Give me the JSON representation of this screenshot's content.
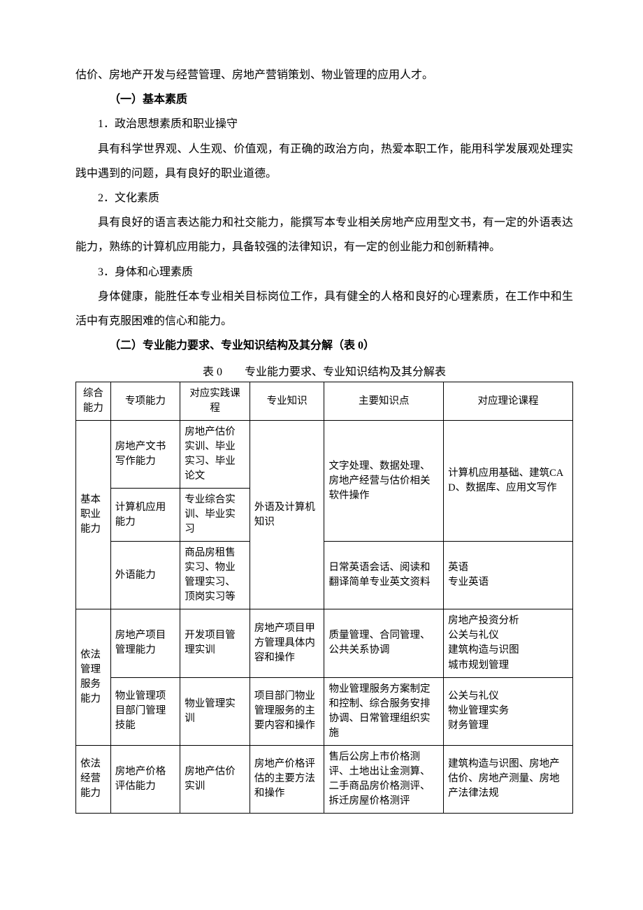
{
  "paragraphs": {
    "p1": "估价、房地产开发与经营管理、房地产营销策划、物业管理的应用人才。",
    "h1": "（一）基本素质",
    "p2": "1．政治思想素质和职业操守",
    "p3": "具有科学世界观、人生观、价值观，有正确的政治方向，热爱本职工作，能用科学发展观处理实践中遇到的问题，具有良好的职业道德。",
    "p4": "2．文化素质",
    "p5": "具有良好的语言表达能力和社交能力，能撰写本专业相关房地产应用型文书，有一定的外语表达能力，熟练的计算机应用能力，具备较强的法律知识，有一定的创业能力和创新精神。",
    "p6": "3．身体和心理素质",
    "p7": "身体健康，能胜任本专业相关目标岗位工作，具有健全的人格和良好的心理素质，在工作中和生活中有克服困难的信心和能力。",
    "h2": "（二）专业能力要求、专业知识结构及其分解（表 0）",
    "caption": "表 0　　专业能力要求、专业知识结构及其分解表"
  },
  "table": {
    "colWidths": [
      "7%",
      "14%",
      "14%",
      "15%",
      "24%",
      "26%"
    ],
    "headers": {
      "c1": "综合能力",
      "c2": "专项能力",
      "c3": "对应实践课程",
      "c4": "专业知识",
      "c5": "主要知识点",
      "c6": "对应理论课程"
    },
    "g1": {
      "label": "基本职业能力",
      "r1": {
        "c2": "房地产文书写作能力",
        "c3": "房地产估价实训、毕业实习、毕业论文"
      },
      "r2": {
        "c2": "计算机应用能力",
        "c3": "专业综合实训、毕业实习"
      },
      "r3": {
        "c2": "外语能力",
        "c3": "商品房租售实习、物业管理实习、顶岗实习等"
      },
      "c4": "外语及计算机知识",
      "kp1": "文字处理、数据处理、房地产经营与估价相关软件操作",
      "kc1": "计算机应用基础、建筑CAD、数据库、应用文写作",
      "kp2": "日常英语会话、阅读和翻译简单专业英文资料",
      "kc2": "英语\n专业英语"
    },
    "g2": {
      "label": "依法管理服务能力",
      "r1": {
        "c2": "房地产项目管理能力",
        "c3": "开发项目管理实训",
        "c4": "房地产项目甲方管理具体内容和操作",
        "c5": "质量管理、合同管理、公共关系协调",
        "c6": "房地产投资分析\n公关与礼仪\n建筑构造与识图\n城市规划管理"
      },
      "r2": {
        "c2": "物业管理项目部门管理技能",
        "c3": "物业管理实训",
        "c4": "项目部门物业管理服务的主要内容和操作",
        "c5": "物业管理服务方案制定和控制、综合服务安排协调、日常管理组织实施",
        "c6": "公关与礼仪\n物业管理实务\n财务管理"
      }
    },
    "g3": {
      "label": "依法经营能力",
      "r1": {
        "c2": "房地产价格评估能力",
        "c3": "房地产估价实训",
        "c4": "房地产价格评估的主要方法和操作",
        "c5": "售后公房上市价格测评、土地出让金测算、二手商品房价格测评、拆迁房屋价格测评",
        "c6": "建筑构造与识图、房地产估价、房地产测量、房地产法律法规"
      }
    }
  },
  "style": {
    "borderColor": "#000000",
    "backgroundColor": "#ffffff",
    "textColor": "#000000",
    "bodyFontSize": 16,
    "tableFontSize": 14.5
  }
}
